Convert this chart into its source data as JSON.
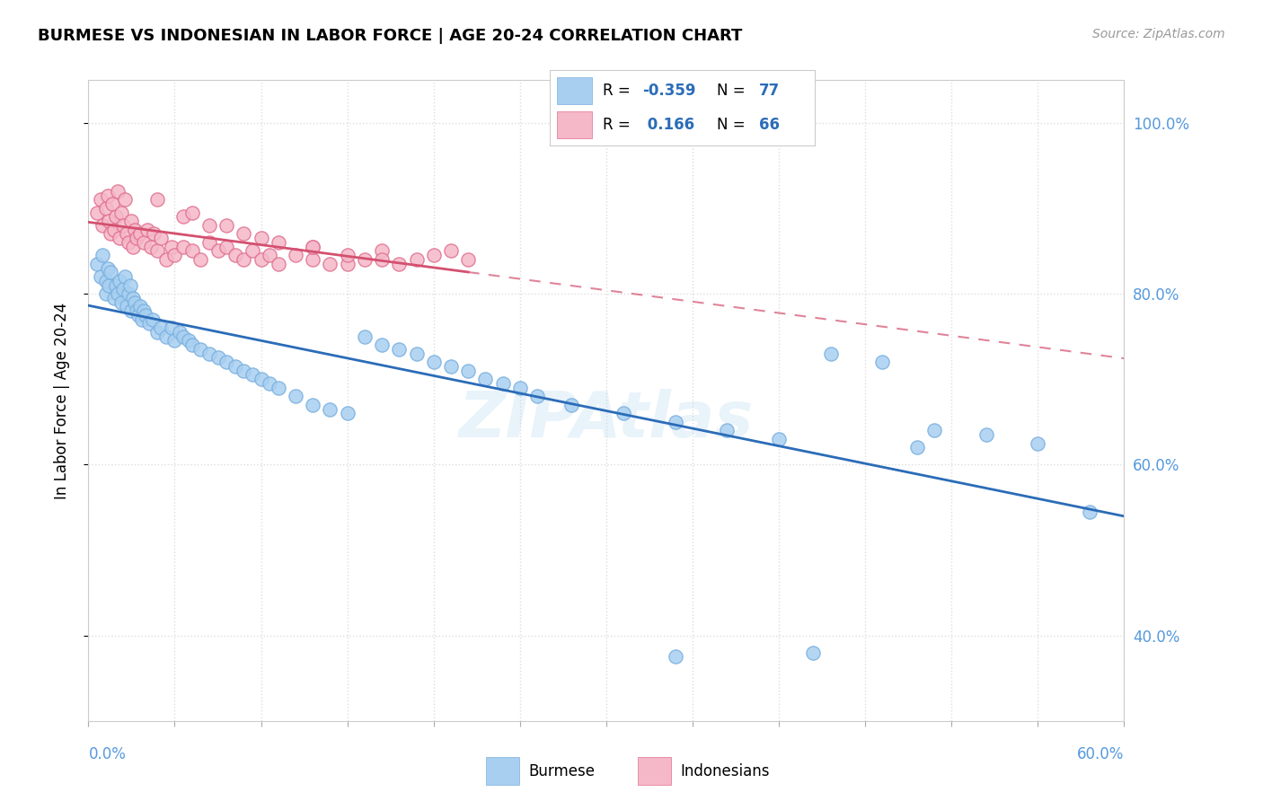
{
  "title": "BURMESE VS INDONESIAN IN LABOR FORCE | AGE 20-24 CORRELATION CHART",
  "source": "Source: ZipAtlas.com",
  "ylabel": "In Labor Force | Age 20-24",
  "xlim": [
    0.0,
    0.6
  ],
  "ylim": [
    0.3,
    1.05
  ],
  "yticks": [
    0.4,
    0.6,
    0.8,
    1.0
  ],
  "ytick_labels": [
    "40.0%",
    "60.0%",
    "80.0%",
    "100.0%"
  ],
  "burmese_color": "#a8cff0",
  "burmese_edge": "#7ab0e0",
  "indonesian_color": "#f5b8c8",
  "indonesian_edge": "#e07090",
  "trendline_blue": "#2b6cb8",
  "trendline_pink": "#d45070",
  "tick_color": "#5599dd",
  "grid_color": "#dddddd",
  "R_burmese": -0.359,
  "N_burmese": 77,
  "R_indonesian": 0.166,
  "N_indonesian": 66,
  "burmese_x": [
    0.005,
    0.007,
    0.008,
    0.01,
    0.01,
    0.011,
    0.012,
    0.013,
    0.015,
    0.016,
    0.017,
    0.018,
    0.019,
    0.02,
    0.021,
    0.022,
    0.023,
    0.024,
    0.025,
    0.026,
    0.027,
    0.028,
    0.029,
    0.03,
    0.031,
    0.032,
    0.033,
    0.035,
    0.037,
    0.04,
    0.042,
    0.045,
    0.048,
    0.05,
    0.053,
    0.055,
    0.058,
    0.06,
    0.065,
    0.07,
    0.075,
    0.08,
    0.085,
    0.09,
    0.095,
    0.1,
    0.105,
    0.11,
    0.12,
    0.13,
    0.14,
    0.15,
    0.16,
    0.17,
    0.18,
    0.19,
    0.2,
    0.21,
    0.22,
    0.23,
    0.24,
    0.25,
    0.26,
    0.28,
    0.31,
    0.34,
    0.37,
    0.4,
    0.43,
    0.46,
    0.49,
    0.52,
    0.55,
    0.58,
    0.34,
    0.42,
    0.48
  ],
  "burmese_y": [
    0.835,
    0.82,
    0.845,
    0.8,
    0.815,
    0.83,
    0.81,
    0.825,
    0.795,
    0.81,
    0.8,
    0.815,
    0.79,
    0.805,
    0.82,
    0.785,
    0.8,
    0.81,
    0.78,
    0.795,
    0.79,
    0.78,
    0.775,
    0.785,
    0.77,
    0.78,
    0.775,
    0.765,
    0.77,
    0.755,
    0.76,
    0.75,
    0.76,
    0.745,
    0.755,
    0.75,
    0.745,
    0.74,
    0.735,
    0.73,
    0.725,
    0.72,
    0.715,
    0.71,
    0.705,
    0.7,
    0.695,
    0.69,
    0.68,
    0.67,
    0.665,
    0.66,
    0.75,
    0.74,
    0.735,
    0.73,
    0.72,
    0.715,
    0.71,
    0.7,
    0.695,
    0.69,
    0.68,
    0.67,
    0.66,
    0.65,
    0.64,
    0.63,
    0.73,
    0.72,
    0.64,
    0.635,
    0.625,
    0.545,
    0.375,
    0.38,
    0.62
  ],
  "indonesian_x": [
    0.005,
    0.007,
    0.008,
    0.01,
    0.011,
    0.012,
    0.013,
    0.014,
    0.015,
    0.016,
    0.017,
    0.018,
    0.019,
    0.02,
    0.021,
    0.022,
    0.023,
    0.025,
    0.026,
    0.027,
    0.028,
    0.03,
    0.032,
    0.034,
    0.036,
    0.038,
    0.04,
    0.042,
    0.045,
    0.048,
    0.05,
    0.055,
    0.06,
    0.065,
    0.07,
    0.075,
    0.08,
    0.085,
    0.09,
    0.095,
    0.1,
    0.105,
    0.11,
    0.12,
    0.13,
    0.14,
    0.15,
    0.16,
    0.17,
    0.18,
    0.19,
    0.2,
    0.21,
    0.22,
    0.055,
    0.07,
    0.09,
    0.11,
    0.13,
    0.15,
    0.17,
    0.04,
    0.06,
    0.08,
    0.1,
    0.13
  ],
  "indonesian_y": [
    0.895,
    0.91,
    0.88,
    0.9,
    0.915,
    0.885,
    0.87,
    0.905,
    0.875,
    0.89,
    0.92,
    0.865,
    0.895,
    0.88,
    0.91,
    0.87,
    0.86,
    0.885,
    0.855,
    0.875,
    0.865,
    0.87,
    0.86,
    0.875,
    0.855,
    0.87,
    0.85,
    0.865,
    0.84,
    0.855,
    0.845,
    0.855,
    0.85,
    0.84,
    0.86,
    0.85,
    0.855,
    0.845,
    0.84,
    0.85,
    0.84,
    0.845,
    0.835,
    0.845,
    0.84,
    0.835,
    0.835,
    0.84,
    0.85,
    0.835,
    0.84,
    0.845,
    0.85,
    0.84,
    0.89,
    0.88,
    0.87,
    0.86,
    0.855,
    0.845,
    0.84,
    0.91,
    0.895,
    0.88,
    0.865,
    0.855
  ]
}
